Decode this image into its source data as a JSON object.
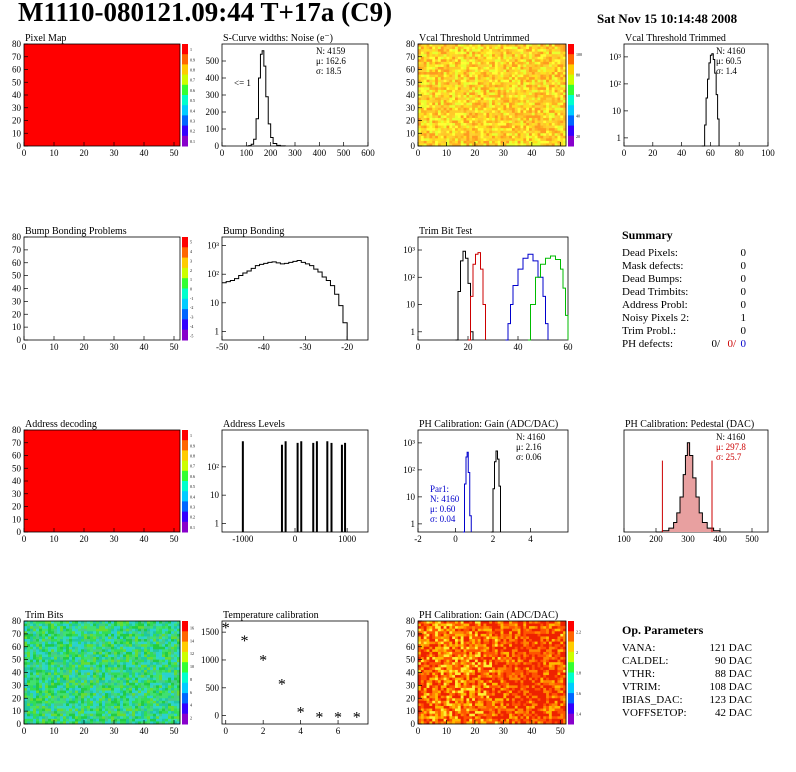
{
  "title": "M1110-080121.09:44 T+17a (C9)",
  "date": "Sat Nov 15 10:14:48 2008",
  "colors": {
    "black": "#000000",
    "red": "#cc0000",
    "blue": "#0000cc",
    "green": "#00bb00",
    "hist_fill_red": "#e8a0a0"
  },
  "chart_data": [
    {
      "id": "pixel_map",
      "type": "heatmap",
      "title": "Pixel Map",
      "xlim": [
        0,
        52
      ],
      "ylim": [
        0,
        80
      ],
      "xticks": [
        0,
        10,
        20,
        30,
        40,
        50
      ],
      "yticks": [
        0,
        10,
        20,
        30,
        40,
        50,
        60,
        70,
        80
      ],
      "fill": "uniform-red",
      "palette": {
        "ticks": [
          "1",
          "0.9",
          "0.8",
          "0.7",
          "0.6",
          "0.5",
          "0.4",
          "0.3",
          "0.2",
          "0.1"
        ]
      }
    },
    {
      "id": "scurve",
      "type": "histogram",
      "title": "S-Curve widths: Noise (e⁻)",
      "xlim": [
        0,
        600
      ],
      "ylim": [
        0,
        600
      ],
      "log": false,
      "xticks": [
        0,
        100,
        200,
        300,
        400,
        500,
        600
      ],
      "yticks": [
        0,
        100,
        200,
        300,
        400,
        500
      ],
      "stats": [
        "N: 4159",
        "μ: 162.6",
        "σ: 18.5"
      ],
      "annotation": "<= 1",
      "series": [
        {
          "color": "black",
          "points": [
            [
              100,
              0
            ],
            [
              110,
              2
            ],
            [
              120,
              10
            ],
            [
              130,
              40
            ],
            [
              140,
              160
            ],
            [
              150,
              400
            ],
            [
              158,
              540
            ],
            [
              165,
              560
            ],
            [
              172,
              470
            ],
            [
              180,
              290
            ],
            [
              190,
              130
            ],
            [
              200,
              50
            ],
            [
              210,
              15
            ],
            [
              225,
              4
            ],
            [
              240,
              1
            ],
            [
              260,
              0
            ]
          ]
        }
      ]
    },
    {
      "id": "vcal_untrimmed",
      "type": "heatmap",
      "title": "Vcal Threshold Untrimmed",
      "xlim": [
        0,
        52
      ],
      "ylim": [
        0,
        80
      ],
      "xticks": [
        0,
        10,
        20,
        30,
        40,
        50
      ],
      "yticks": [
        0,
        10,
        20,
        30,
        40,
        50,
        60,
        70,
        80
      ],
      "fill": "noisy-yellow-orange",
      "palette": {
        "ticks": [
          "100",
          "80",
          "60",
          "40",
          "20"
        ]
      }
    },
    {
      "id": "vcal_trimmed",
      "type": "histogram",
      "title": "Vcal Threshold Trimmed",
      "xlim": [
        0,
        100
      ],
      "ylim": [
        0.5,
        3000
      ],
      "log": true,
      "xticks": [
        0,
        20,
        40,
        60,
        80,
        100
      ],
      "ylogticks": [
        [
          "1",
          1
        ],
        [
          "10",
          10
        ],
        [
          "10²",
          100
        ],
        [
          "10³",
          1000
        ]
      ],
      "stats": [
        "N: 4160",
        "μ: 60.5",
        "σ:  1.4"
      ],
      "series": [
        {
          "color": "black",
          "points": [
            [
              54,
              0.5
            ],
            [
              56,
              3
            ],
            [
              57,
              30
            ],
            [
              58,
              150
            ],
            [
              59,
              600
            ],
            [
              60,
              1150
            ],
            [
              61,
              1300
            ],
            [
              62,
              800
            ],
            [
              63,
              250
            ],
            [
              64,
              40
            ],
            [
              65,
              5
            ],
            [
              66,
              0.5
            ]
          ]
        }
      ]
    },
    {
      "id": "bump_problems",
      "type": "heatmap",
      "title": "Bump Bonding Problems",
      "xlim": [
        0,
        52
      ],
      "ylim": [
        0,
        80
      ],
      "xticks": [
        0,
        10,
        20,
        30,
        40,
        50
      ],
      "yticks": [
        0,
        10,
        20,
        30,
        40,
        50,
        60,
        70,
        80
      ],
      "fill": "empty",
      "palette": {
        "ticks": [
          "5",
          "4",
          "3",
          "2",
          "1",
          "0",
          "-1",
          "-2",
          "-3",
          "-4",
          "-5"
        ]
      }
    },
    {
      "id": "bump_bonding",
      "type": "histogram",
      "title": "Bump Bonding",
      "xlim": [
        -50,
        -15
      ],
      "ylim": [
        0.5,
        2000
      ],
      "log": true,
      "xticks": [
        -50,
        -40,
        -30,
        -20
      ],
      "ylogticks": [
        [
          "1",
          1
        ],
        [
          "10",
          10
        ],
        [
          "10²",
          100
        ],
        [
          "10³",
          1000
        ]
      ],
      "series": [
        {
          "color": "black",
          "points": [
            [
              -50,
              50
            ],
            [
              -49,
              55
            ],
            [
              -48,
              60
            ],
            [
              -47,
              70
            ],
            [
              -46,
              90
            ],
            [
              -45,
              110
            ],
            [
              -44,
              130
            ],
            [
              -43,
              160
            ],
            [
              -42,
              200
            ],
            [
              -41,
              220
            ],
            [
              -40,
              240
            ],
            [
              -39,
              260
            ],
            [
              -38,
              270
            ],
            [
              -37,
              250
            ],
            [
              -36,
              230
            ],
            [
              -35,
              240
            ],
            [
              -34,
              260
            ],
            [
              -33,
              280
            ],
            [
              -32,
              300
            ],
            [
              -31,
              260
            ],
            [
              -30,
              230
            ],
            [
              -29,
              200
            ],
            [
              -28,
              150
            ],
            [
              -27,
              120
            ],
            [
              -26,
              80
            ],
            [
              -25,
              60
            ],
            [
              -24,
              40
            ],
            [
              -23,
              20
            ],
            [
              -22,
              8
            ],
            [
              -21,
              2
            ],
            [
              -20,
              0.5
            ]
          ]
        }
      ]
    },
    {
      "id": "trim_bit_test",
      "type": "histogram",
      "title": "Trim Bit Test",
      "xlim": [
        0,
        60
      ],
      "ylim": [
        0.5,
        3000
      ],
      "log": true,
      "xticks": [
        0,
        20,
        40,
        60
      ],
      "ylogticks": [
        [
          "1",
          1
        ],
        [
          "10",
          10
        ],
        [
          "10²",
          100
        ],
        [
          "10³",
          1000
        ]
      ],
      "series": [
        {
          "color": "black",
          "points": [
            [
              15,
              0.5
            ],
            [
              16,
              30
            ],
            [
              17,
              400
            ],
            [
              18,
              900
            ],
            [
              19,
              500
            ],
            [
              20,
              60
            ],
            [
              21,
              1
            ],
            [
              22,
              0.5
            ]
          ]
        },
        {
          "color": "red",
          "points": [
            [
              20,
              0.5
            ],
            [
              21,
              20
            ],
            [
              22,
              300
            ],
            [
              23,
              700
            ],
            [
              24,
              800
            ],
            [
              25,
              200
            ],
            [
              26,
              10
            ],
            [
              27,
              0.5
            ]
          ]
        },
        {
          "color": "blue",
          "points": [
            [
              35,
              0.5
            ],
            [
              36,
              2
            ],
            [
              37,
              10
            ],
            [
              38,
              50
            ],
            [
              40,
              200
            ],
            [
              42,
              500
            ],
            [
              44,
              700
            ],
            [
              46,
              400
            ],
            [
              48,
              100
            ],
            [
              50,
              20
            ],
            [
              51,
              2
            ],
            [
              52,
              0.5
            ]
          ]
        },
        {
          "color": "green",
          "points": [
            [
              44,
              0.5
            ],
            [
              45,
              10
            ],
            [
              47,
              100
            ],
            [
              49,
              300
            ],
            [
              51,
              500
            ],
            [
              53,
              600
            ],
            [
              55,
              450
            ],
            [
              57,
              200
            ],
            [
              58,
              40
            ],
            [
              59,
              4
            ],
            [
              60,
              0.5
            ]
          ]
        }
      ]
    },
    {
      "id": "address_decoding",
      "type": "heatmap",
      "title": "Address decoding",
      "xlim": [
        0,
        52
      ],
      "ylim": [
        0,
        80
      ],
      "xticks": [
        0,
        10,
        20,
        30,
        40,
        50
      ],
      "yticks": [
        0,
        10,
        20,
        30,
        40,
        50,
        60,
        70,
        80
      ],
      "fill": "uniform-red",
      "palette": {
        "ticks": [
          "1",
          "0.9",
          "0.8",
          "0.7",
          "0.6",
          "0.5",
          "0.4",
          "0.3",
          "0.2",
          "0.1"
        ]
      }
    },
    {
      "id": "address_levels",
      "type": "spikes",
      "title": "Address Levels",
      "xlim": [
        -1400,
        1400
      ],
      "ylim": [
        0.5,
        2000
      ],
      "log": true,
      "xticks": [
        -1000,
        0,
        1000
      ],
      "ylogticks": [
        [
          "1",
          1
        ],
        [
          "10",
          10
        ],
        [
          "10²",
          100
        ]
      ],
      "spikes": [
        [
          -1000,
          800
        ],
        [
          -250,
          600
        ],
        [
          -180,
          800
        ],
        [
          50,
          700
        ],
        [
          120,
          800
        ],
        [
          350,
          700
        ],
        [
          420,
          800
        ],
        [
          620,
          800
        ],
        [
          700,
          700
        ],
        [
          900,
          600
        ],
        [
          960,
          700
        ]
      ]
    },
    {
      "id": "ph_gain",
      "type": "histogram",
      "title": "PH Calibration: Gain (ADC/DAC)",
      "xlim": [
        -2,
        6
      ],
      "ylim": [
        0.5,
        3000
      ],
      "log": true,
      "xticks": [
        -2,
        0,
        2,
        4
      ],
      "ylogticks": [
        [
          "1",
          1
        ],
        [
          "10",
          10
        ],
        [
          "10²",
          100
        ],
        [
          "10³",
          1000
        ]
      ],
      "stats": [
        "N: 4160",
        "μ: 2.16",
        "σ: 0.06"
      ],
      "stats2": [
        "Par1:",
        "N: 4160",
        "μ: 0.60",
        "σ: 0.04"
      ],
      "series": [
        {
          "color": "blue",
          "points": [
            [
              0.4,
              0.5
            ],
            [
              0.48,
              30
            ],
            [
              0.56,
              300
            ],
            [
              0.62,
              450
            ],
            [
              0.68,
              80
            ],
            [
              0.76,
              2
            ],
            [
              0.84,
              0.5
            ]
          ]
        },
        {
          "color": "black",
          "points": [
            [
              1.9,
              0.5
            ],
            [
              2.0,
              20
            ],
            [
              2.08,
              200
            ],
            [
              2.16,
              500
            ],
            [
              2.24,
              250
            ],
            [
              2.32,
              25
            ],
            [
              2.4,
              0.5
            ]
          ]
        }
      ]
    },
    {
      "id": "ph_pedestal",
      "type": "histogram",
      "title": "PH Calibration: Pedestal (DAC)",
      "xlim": [
        100,
        550
      ],
      "ylim": [
        0,
        160
      ],
      "log": false,
      "xticks": [
        100,
        200,
        300,
        400,
        500
      ],
      "yticks": [],
      "stats": [
        "N: 4160",
        "μ: 297.8",
        "σ: 25.7"
      ],
      "series": [
        {
          "color": "black",
          "fill": "red",
          "points": [
            [
              200,
              0
            ],
            [
              220,
              2
            ],
            [
              240,
              6
            ],
            [
              255,
              15
            ],
            [
              265,
              30
            ],
            [
              275,
              55
            ],
            [
              285,
              90
            ],
            [
              292,
              120
            ],
            [
              298,
              140
            ],
            [
              305,
              120
            ],
            [
              315,
              85
            ],
            [
              325,
              55
            ],
            [
              335,
              30
            ],
            [
              345,
              15
            ],
            [
              360,
              6
            ],
            [
              380,
              2
            ],
            [
              400,
              0
            ]
          ]
        }
      ],
      "markers": [
        220,
        375
      ]
    },
    {
      "id": "trim_bits",
      "type": "heatmap",
      "title": "Trim Bits",
      "xlim": [
        0,
        52
      ],
      "ylim": [
        0,
        80
      ],
      "xticks": [
        0,
        10,
        20,
        30,
        40,
        50
      ],
      "yticks": [
        0,
        10,
        20,
        30,
        40,
        50,
        60,
        70,
        80
      ],
      "fill": "noisy-green-cyan",
      "palette": {
        "ticks": [
          "16",
          "14",
          "12",
          "10",
          "8",
          "6",
          "4",
          "2"
        ]
      }
    },
    {
      "id": "temperature",
      "type": "scatter",
      "title": "Temperature calibration",
      "xlim": [
        -0.2,
        7.6
      ],
      "ylim": [
        -150,
        1700
      ],
      "log": false,
      "xticks": [
        0,
        2,
        4,
        6
      ],
      "yticks": [
        0,
        500,
        1000,
        1500
      ],
      "points": [
        [
          0,
          1570
        ],
        [
          1,
          1340
        ],
        [
          2,
          990
        ],
        [
          3,
          560
        ],
        [
          4,
          60
        ],
        [
          5,
          -30
        ],
        [
          6,
          -30
        ],
        [
          7,
          -30
        ]
      ]
    },
    {
      "id": "ph_gain_map",
      "type": "heatmap",
      "title": "PH Calibration: Gain (ADC/DAC)",
      "xlim": [
        0,
        52
      ],
      "ylim": [
        0,
        80
      ],
      "xticks": [
        0,
        10,
        20,
        30,
        40,
        50
      ],
      "yticks": [
        0,
        10,
        20,
        30,
        40,
        50,
        60,
        70,
        80
      ],
      "fill": "noisy-red-orange",
      "palette": {
        "ticks": [
          "2.2",
          "2",
          "1.8",
          "1.6",
          "1.4"
        ]
      }
    }
  ],
  "summary": {
    "title": "Summary",
    "rows": [
      {
        "label": "Dead Pixels:",
        "value": "0"
      },
      {
        "label": "Mask defects:",
        "value": "0"
      },
      {
        "label": "Dead Bumps:",
        "value": "0"
      },
      {
        "label": "Dead Trimbits:",
        "value": "0"
      },
      {
        "label": "Address Probl:",
        "value": "0"
      },
      {
        "label": "Noisy Pixels 2:",
        "value": "1"
      },
      {
        "label": "Trim Probl.:",
        "value": "0"
      }
    ],
    "ph_label": "PH defects:",
    "ph_values": [
      "0/",
      "0/",
      "0"
    ]
  },
  "op_params": {
    "title": "Op. Parameters",
    "rows": [
      {
        "label": "VANA:",
        "value": "121 DAC"
      },
      {
        "label": "CALDEL:",
        "value": "90 DAC"
      },
      {
        "label": "VTHR:",
        "value": "88 DAC"
      },
      {
        "label": "VTRIM:",
        "value": "108 DAC"
      },
      {
        "label": "IBIAS_DAC:",
        "value": "123 DAC"
      },
      {
        "label": "VOFFSETOP:",
        "value": "42 DAC"
      }
    ]
  }
}
